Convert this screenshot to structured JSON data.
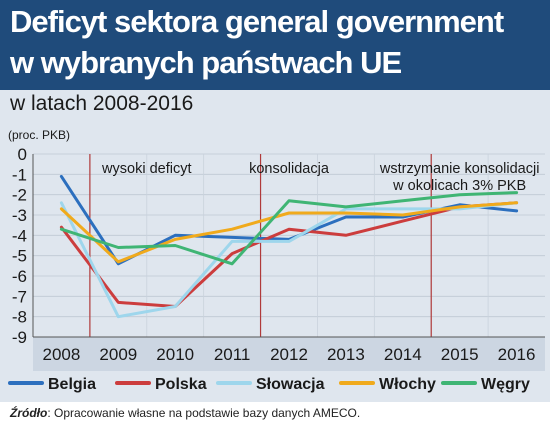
{
  "title_line1": "Deficyt sektora general government",
  "title_line2": "w wybranych państwach UE",
  "subtitle": "w latach 2008-2016",
  "unit_label": "(proc. PKB)",
  "source_label": "Źródło",
  "source_text": ": Opracowanie własne na podstawie bazy danych AMECO.",
  "chart_data": {
    "type": "line",
    "x": [
      "2008",
      "2009",
      "2010",
      "2011",
      "2012",
      "2013",
      "2014",
      "2015",
      "2016"
    ],
    "ylim": [
      -9,
      0
    ],
    "yticks": [
      "0",
      "-1",
      "-2",
      "-3",
      "-4",
      "-5",
      "-6",
      "-7",
      "-8",
      "-9"
    ],
    "grid": true,
    "legend_position": "bottom",
    "phases": [
      {
        "label_lines": [
          "wysoki deficyt"
        ],
        "from": "2009",
        "to": "2010"
      },
      {
        "label_lines": [
          "konsolidacja"
        ],
        "from": "2011",
        "to": "2013"
      },
      {
        "label_lines": [
          "wstrzymanie konsolidacji",
          "w okolicach 3% PKB"
        ],
        "from": "2014",
        "to": "2016"
      }
    ],
    "series": [
      {
        "name": "Belgia",
        "color": "#2c6fbe",
        "values": [
          -1.1,
          -5.4,
          -4.0,
          -4.1,
          -4.2,
          -3.1,
          -3.1,
          -2.5,
          -2.8
        ]
      },
      {
        "name": "Polska",
        "color": "#cc3d3d",
        "values": [
          -3.6,
          -7.3,
          -7.5,
          -4.9,
          -3.7,
          -4.0,
          -3.3,
          -2.6,
          -2.4
        ]
      },
      {
        "name": "Słowacja",
        "color": "#9ed6ec",
        "values": [
          -2.4,
          -8.0,
          -7.5,
          -4.3,
          -4.3,
          -2.7,
          -2.7,
          -2.7,
          -2.4
        ]
      },
      {
        "name": "Włochy",
        "color": "#f0aa1c",
        "values": [
          -2.7,
          -5.3,
          -4.2,
          -3.7,
          -2.9,
          -2.9,
          -3.0,
          -2.6,
          -2.4
        ]
      },
      {
        "name": "Węgry",
        "color": "#3fb574",
        "values": [
          -3.7,
          -4.6,
          -4.5,
          -5.4,
          -2.3,
          -2.6,
          -2.3,
          -2.0,
          -1.9
        ]
      }
    ]
  }
}
